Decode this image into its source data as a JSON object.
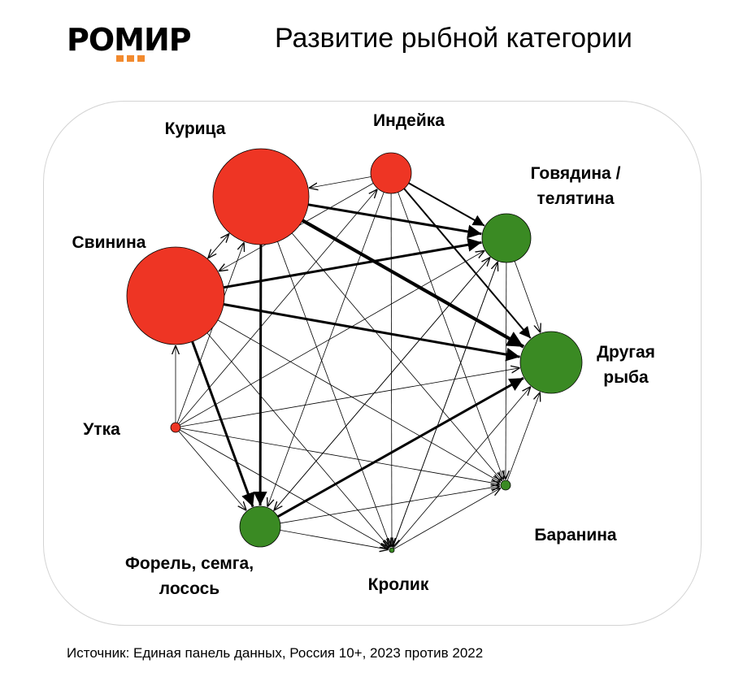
{
  "logo": {
    "text": "РОМИР",
    "dot_color": "#f28a2e"
  },
  "title": "Развитие рыбной категории",
  "source": "Источник: Единая панель данных, Россия 10+, 2023 против 2022",
  "colors": {
    "loss": "#ee3524",
    "gain": "#3a8a23",
    "edge": "#000000",
    "panel_border": "#d3d3d3"
  },
  "nodes": [
    {
      "id": "chicken",
      "label": [
        "Курица"
      ],
      "color": "loss"
    },
    {
      "id": "turkey",
      "label": [
        "Индейка"
      ],
      "color": "loss"
    },
    {
      "id": "beef",
      "label": [
        "Говядина /",
        "телятина"
      ],
      "color": "gain"
    },
    {
      "id": "pork",
      "label": [
        "Свинина"
      ],
      "color": "loss"
    },
    {
      "id": "other_fish",
      "label": [
        "Другая",
        "рыба"
      ],
      "color": "gain"
    },
    {
      "id": "duck",
      "label": [
        "Утка"
      ],
      "color": "loss"
    },
    {
      "id": "lamb",
      "label": [
        "Баранина"
      ],
      "color": "gain"
    },
    {
      "id": "trout",
      "label": [
        "Форель, семга,",
        "лосось"
      ],
      "color": "gain"
    },
    {
      "id": "rabbit",
      "label": [
        "Кролик"
      ],
      "color": "gain"
    }
  ],
  "edges": [
    {
      "from": "chicken",
      "to": "other_fish",
      "weight": 4
    },
    {
      "from": "chicken",
      "to": "trout",
      "weight": 3
    },
    {
      "from": "chicken",
      "to": "beef",
      "weight": 3
    },
    {
      "from": "chicken",
      "to": "pork",
      "weight": 1
    },
    {
      "from": "chicken",
      "to": "lamb",
      "weight": 1
    },
    {
      "from": "chicken",
      "to": "rabbit",
      "weight": 1
    },
    {
      "from": "turkey",
      "to": "chicken",
      "weight": 1
    },
    {
      "from": "turkey",
      "to": "beef",
      "weight": 2
    },
    {
      "from": "turkey",
      "to": "other_fish",
      "weight": 2
    },
    {
      "from": "turkey",
      "to": "pork",
      "weight": 1
    },
    {
      "from": "turkey",
      "to": "lamb",
      "weight": 1
    },
    {
      "from": "turkey",
      "to": "rabbit",
      "weight": 1
    },
    {
      "from": "turkey",
      "to": "trout",
      "weight": 1
    },
    {
      "from": "pork",
      "to": "other_fish",
      "weight": 3
    },
    {
      "from": "pork",
      "to": "beef",
      "weight": 3
    },
    {
      "from": "pork",
      "to": "trout",
      "weight": 3
    },
    {
      "from": "pork",
      "to": "lamb",
      "weight": 1
    },
    {
      "from": "pork",
      "to": "rabbit",
      "weight": 1
    },
    {
      "from": "pork",
      "to": "chicken",
      "weight": 1
    },
    {
      "from": "trout",
      "to": "other_fish",
      "weight": 3
    },
    {
      "from": "beef",
      "to": "other_fish",
      "weight": 1
    },
    {
      "from": "beef",
      "to": "lamb",
      "weight": 1
    },
    {
      "from": "beef",
      "to": "rabbit",
      "weight": 1
    },
    {
      "from": "beef",
      "to": "trout",
      "weight": 1
    },
    {
      "from": "duck",
      "to": "pork",
      "weight": 1
    },
    {
      "from": "duck",
      "to": "chicken",
      "weight": 1
    },
    {
      "from": "duck",
      "to": "turkey",
      "weight": 1
    },
    {
      "from": "duck",
      "to": "beef",
      "weight": 1
    },
    {
      "from": "duck",
      "to": "other_fish",
      "weight": 1
    },
    {
      "from": "duck",
      "to": "lamb",
      "weight": 1
    },
    {
      "from": "duck",
      "to": "trout",
      "weight": 1
    },
    {
      "from": "duck",
      "to": "rabbit",
      "weight": 1
    },
    {
      "from": "rabbit",
      "to": "lamb",
      "weight": 1
    },
    {
      "from": "rabbit",
      "to": "other_fish",
      "weight": 1
    },
    {
      "from": "rabbit",
      "to": "beef",
      "weight": 1
    },
    {
      "from": "trout",
      "to": "lamb",
      "weight": 1
    },
    {
      "from": "trout",
      "to": "rabbit",
      "weight": 1
    },
    {
      "from": "trout",
      "to": "beef",
      "weight": 1
    },
    {
      "from": "lamb",
      "to": "other_fish",
      "weight": 1
    }
  ]
}
